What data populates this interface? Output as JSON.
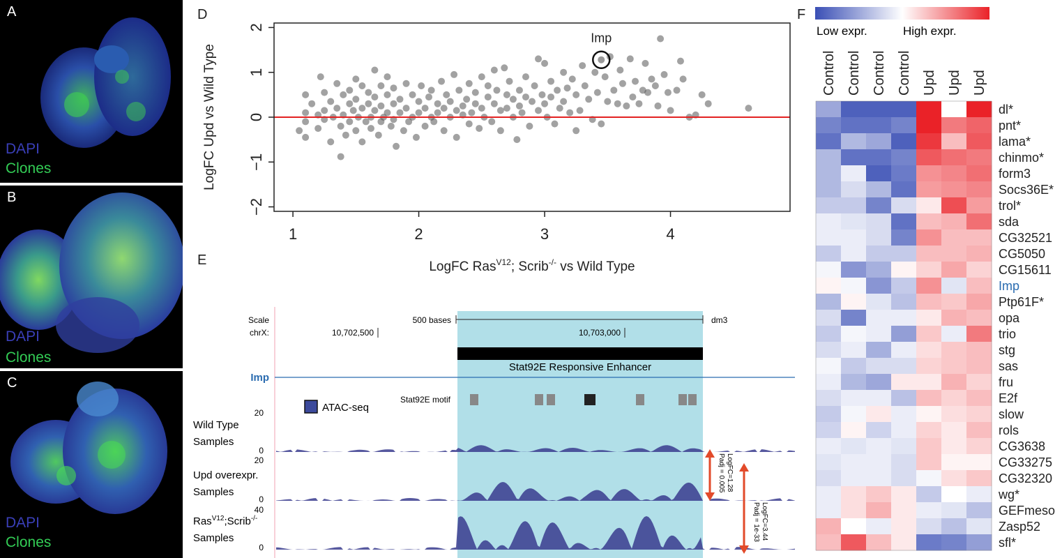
{
  "panels": {
    "A": {
      "letter": "A",
      "dapi": "DAPI",
      "clones": "Clones"
    },
    "B": {
      "letter": "B",
      "dapi": "DAPI",
      "clones": "Clones"
    },
    "C": {
      "letter": "C",
      "dapi": "DAPI",
      "clones": "Clones"
    },
    "D": {
      "letter": "D"
    },
    "E": {
      "letter": "E"
    },
    "F": {
      "letter": "F"
    }
  },
  "chart_data": {
    "type": "scatter",
    "ylabel": "LogFC Upd vs Wild Type",
    "xlabel_parts": [
      "LogFC Ras",
      "V12",
      "; Scrib",
      "-/-",
      " vs Wild Type"
    ],
    "xlim": [
      0.85,
      4.95
    ],
    "ylim": [
      -2.1,
      2.1
    ],
    "xticks": [
      1,
      2,
      3,
      4
    ],
    "yticks": [
      -2,
      -1,
      0,
      1,
      2
    ],
    "ytick_labels": [
      "−2",
      "−1",
      "0",
      "1",
      "2"
    ],
    "reference_line": {
      "y": 0,
      "color": "#e32222"
    },
    "highlight": {
      "label": "Imp",
      "x": 3.45,
      "y": 1.28
    },
    "points": [
      [
        1.05,
        -0.3
      ],
      [
        1.1,
        0.5
      ],
      [
        1.1,
        -0.1
      ],
      [
        1.1,
        0.1
      ],
      [
        1.1,
        -0.45
      ],
      [
        1.15,
        0.3
      ],
      [
        1.2,
        0.05
      ],
      [
        1.2,
        -0.25
      ],
      [
        1.22,
        0.9
      ],
      [
        1.25,
        0.55
      ],
      [
        1.25,
        0.15
      ],
      [
        1.25,
        -0.05
      ],
      [
        1.3,
        0.35
      ],
      [
        1.3,
        -0.55
      ],
      [
        1.32,
        0.0
      ],
      [
        1.35,
        0.75
      ],
      [
        1.35,
        0.2
      ],
      [
        1.38,
        -0.2
      ],
      [
        1.38,
        -0.88
      ],
      [
        1.4,
        0.5
      ],
      [
        1.4,
        0.05
      ],
      [
        1.42,
        -0.4
      ],
      [
        1.45,
        0.6
      ],
      [
        1.45,
        0.3
      ],
      [
        1.45,
        -0.1
      ],
      [
        1.48,
        0.15
      ],
      [
        1.5,
        0.85
      ],
      [
        1.5,
        0.4
      ],
      [
        1.5,
        -0.3
      ],
      [
        1.52,
        0.0
      ],
      [
        1.55,
        0.7
      ],
      [
        1.55,
        0.2
      ],
      [
        1.55,
        -0.55
      ],
      [
        1.58,
        -0.1
      ],
      [
        1.6,
        0.55
      ],
      [
        1.6,
        0.3
      ],
      [
        1.62,
        0.0
      ],
      [
        1.62,
        -0.25
      ],
      [
        1.65,
        1.05
      ],
      [
        1.65,
        0.45
      ],
      [
        1.65,
        0.15
      ],
      [
        1.68,
        -0.4
      ],
      [
        1.7,
        0.7
      ],
      [
        1.7,
        0.25
      ],
      [
        1.7,
        -0.1
      ],
      [
        1.72,
        0.0
      ],
      [
        1.75,
        0.9
      ],
      [
        1.75,
        0.5
      ],
      [
        1.75,
        0.1
      ],
      [
        1.78,
        -0.2
      ],
      [
        1.8,
        0.65
      ],
      [
        1.8,
        0.3
      ],
      [
        1.8,
        -0.05
      ],
      [
        1.82,
        -0.65
      ],
      [
        1.85,
        0.4
      ],
      [
        1.85,
        0.1
      ],
      [
        1.88,
        -0.3
      ],
      [
        1.9,
        0.75
      ],
      [
        1.9,
        0.2
      ],
      [
        1.92,
        -0.1
      ],
      [
        1.95,
        0.5
      ],
      [
        1.95,
        0.0
      ],
      [
        1.98,
        -0.45
      ],
      [
        2.0,
        0.35
      ],
      [
        2.0,
        0.1
      ],
      [
        2.02,
        0.7
      ],
      [
        2.05,
        -0.2
      ],
      [
        2.05,
        0.2
      ],
      [
        2.08,
        0.45
      ],
      [
        2.1,
        0.0
      ],
      [
        2.1,
        0.6
      ],
      [
        2.12,
        -0.1
      ],
      [
        2.15,
        0.3
      ],
      [
        2.15,
        0.1
      ],
      [
        2.18,
        0.8
      ],
      [
        2.2,
        0.2
      ],
      [
        2.2,
        -0.3
      ],
      [
        2.22,
        0.5
      ],
      [
        2.25,
        0.0
      ],
      [
        2.25,
        0.35
      ],
      [
        2.28,
        0.95
      ],
      [
        2.3,
        0.15
      ],
      [
        2.3,
        -0.45
      ],
      [
        2.32,
        0.6
      ],
      [
        2.35,
        0.25
      ],
      [
        2.35,
        0.05
      ],
      [
        2.38,
        0.4
      ],
      [
        2.4,
        0.75
      ],
      [
        2.4,
        -0.15
      ],
      [
        2.42,
        0.1
      ],
      [
        2.45,
        0.55
      ],
      [
        2.45,
        0.3
      ],
      [
        2.48,
        -0.25
      ],
      [
        2.5,
        0.9
      ],
      [
        2.5,
        0.2
      ],
      [
        2.52,
        0.0
      ],
      [
        2.55,
        0.45
      ],
      [
        2.55,
        0.7
      ],
      [
        2.58,
        -0.1
      ],
      [
        2.6,
        1.05
      ],
      [
        2.6,
        0.3
      ],
      [
        2.62,
        0.6
      ],
      [
        2.65,
        0.15
      ],
      [
        2.65,
        -0.3
      ],
      [
        2.68,
        1.1
      ],
      [
        2.7,
        0.5
      ],
      [
        2.7,
        0.2
      ],
      [
        2.72,
        0.8
      ],
      [
        2.75,
        0.0
      ],
      [
        2.75,
        0.4
      ],
      [
        2.78,
        -0.5
      ],
      [
        2.8,
        0.6
      ],
      [
        2.8,
        0.25
      ],
      [
        2.82,
        0.1
      ],
      [
        2.85,
        0.9
      ],
      [
        2.85,
        0.45
      ],
      [
        2.88,
        -0.2
      ],
      [
        2.9,
        0.35
      ],
      [
        2.92,
        0.7
      ],
      [
        2.95,
        1.3
      ],
      [
        2.95,
        0.15
      ],
      [
        2.98,
        0.5
      ],
      [
        3.0,
        1.2
      ],
      [
        3.0,
        0.3
      ],
      [
        3.02,
        0.0
      ],
      [
        3.05,
        0.8
      ],
      [
        3.05,
        0.45
      ],
      [
        3.08,
        -0.15
      ],
      [
        3.1,
        0.6
      ],
      [
        3.12,
        0.2
      ],
      [
        3.15,
        1.0
      ],
      [
        3.15,
        0.35
      ],
      [
        3.18,
        0.65
      ],
      [
        3.2,
        0.1
      ],
      [
        3.22,
        0.85
      ],
      [
        3.25,
        -0.3
      ],
      [
        3.25,
        0.5
      ],
      [
        3.28,
        0.15
      ],
      [
        3.3,
        1.15
      ],
      [
        3.32,
        0.7
      ],
      [
        3.35,
        0.4
      ],
      [
        3.38,
        -0.05
      ],
      [
        3.4,
        1.0
      ],
      [
        3.42,
        0.55
      ],
      [
        3.45,
        -0.15
      ],
      [
        3.48,
        0.9
      ],
      [
        3.5,
        0.35
      ],
      [
        3.52,
        1.35
      ],
      [
        3.55,
        0.6
      ],
      [
        3.58,
        0.3
      ],
      [
        3.6,
        1.05
      ],
      [
        3.62,
        0.75
      ],
      [
        3.65,
        0.25
      ],
      [
        3.68,
        1.3
      ],
      [
        3.7,
        0.45
      ],
      [
        3.72,
        0.8
      ],
      [
        3.75,
        0.3
      ],
      [
        3.78,
        0.6
      ],
      [
        3.8,
        1.2
      ],
      [
        3.82,
        0.55
      ],
      [
        3.85,
        0.85
      ],
      [
        3.88,
        0.7
      ],
      [
        3.9,
        0.25
      ],
      [
        3.92,
        1.75
      ],
      [
        3.95,
        0.95
      ],
      [
        3.98,
        0.55
      ],
      [
        4.0,
        0.15
      ],
      [
        4.05,
        0.6
      ],
      [
        4.08,
        1.25
      ],
      [
        4.1,
        0.85
      ],
      [
        4.15,
        0.0
      ],
      [
        4.2,
        0.05
      ],
      [
        4.25,
        0.5
      ],
      [
        4.3,
        0.3
      ],
      [
        4.62,
        0.2
      ]
    ]
  },
  "browser": {
    "scale_label": "Scale",
    "chr_label": "chrX:",
    "scale_bar_label": "500 bases",
    "assembly": "dm3",
    "pos1": "10,702,500",
    "pos2": "10,703,000",
    "gene": "Imp",
    "enhancer": "Stat92E Responsive Enhancer",
    "motif_label": "Stat92E motif",
    "legend": "ATAC-seq",
    "tracks": [
      {
        "line1": "Wild Type",
        "line2": "Samples",
        "max": "20",
        "zero": "0"
      },
      {
        "line1": "Upd overexpr.",
        "line2": "Samples",
        "max": "20",
        "zero": "0"
      },
      {
        "line1_parts": [
          "Ras",
          "V12",
          ";Scrib",
          "-/-"
        ],
        "line2": "Samples",
        "max": "40",
        "zero": "0"
      }
    ],
    "annot1": {
      "logfc": "LogFC=1.28",
      "padj": "Padj = 0.005"
    },
    "annot2": {
      "logfc": "LogFC=3.44",
      "padj": "Padj = 1e-33"
    },
    "colors": {
      "highlight": "#b1dfe8",
      "atac": "#3a3c8e",
      "arrow": "#e24a2a",
      "gene": "#2b6cb0"
    }
  },
  "heatmap": {
    "legend_low": "Low expr.",
    "legend_high": "High expr.",
    "columns": [
      "Control",
      "Control",
      "Control",
      "Control",
      "Upd",
      "Upd",
      "Upd"
    ],
    "rows": [
      {
        "gene": "dl*",
        "values": [
          -0.5,
          -0.9,
          -0.9,
          -0.9,
          1.0,
          0.0,
          1.0
        ]
      },
      {
        "gene": "pnt*",
        "values": [
          -0.7,
          -0.8,
          -0.8,
          -0.7,
          1.0,
          0.6,
          0.7
        ]
      },
      {
        "gene": "lama*",
        "values": [
          -0.8,
          -0.4,
          -0.5,
          -0.9,
          0.9,
          0.3,
          0.75
        ]
      },
      {
        "gene": "chinmo*",
        "values": [
          -0.4,
          -0.8,
          -0.8,
          -0.7,
          0.75,
          0.65,
          0.6
        ]
      },
      {
        "gene": "form3",
        "values": [
          -0.4,
          -0.1,
          -0.9,
          -0.75,
          0.5,
          0.55,
          0.65
        ]
      },
      {
        "gene": "Socs36E*",
        "values": [
          -0.4,
          -0.2,
          -0.4,
          -0.8,
          0.45,
          0.5,
          0.55
        ]
      },
      {
        "gene": "trol*",
        "values": [
          -0.3,
          -0.3,
          -0.7,
          -0.2,
          0.1,
          0.8,
          0.45
        ]
      },
      {
        "gene": "sda",
        "values": [
          -0.1,
          -0.15,
          -0.2,
          -0.8,
          0.3,
          0.35,
          0.65
        ]
      },
      {
        "gene": "CG32521",
        "values": [
          -0.1,
          -0.1,
          -0.2,
          -0.7,
          0.5,
          0.3,
          0.3
        ]
      },
      {
        "gene": "CG5050",
        "values": [
          -0.3,
          -0.1,
          -0.3,
          -0.3,
          0.3,
          0.3,
          0.35
        ]
      },
      {
        "gene": "CG15611",
        "values": [
          -0.05,
          -0.6,
          -0.45,
          0.05,
          0.2,
          0.4,
          0.2
        ]
      },
      {
        "gene": "Imp",
        "highlight": true,
        "values": [
          0.05,
          -0.05,
          -0.6,
          -0.3,
          0.5,
          -0.15,
          0.3
        ]
      },
      {
        "gene": "Ptp61F*",
        "values": [
          -0.4,
          0.05,
          -0.15,
          -0.35,
          0.3,
          0.25,
          0.4
        ]
      },
      {
        "gene": "opa",
        "values": [
          -0.2,
          -0.7,
          -0.1,
          -0.1,
          0.1,
          0.35,
          0.3
        ]
      },
      {
        "gene": "trio",
        "values": [
          -0.3,
          -0.05,
          -0.1,
          -0.55,
          0.25,
          -0.1,
          0.6
        ]
      },
      {
        "gene": "stg",
        "values": [
          -0.2,
          -0.1,
          -0.45,
          -0.1,
          0.15,
          0.25,
          0.3
        ]
      },
      {
        "gene": "sas",
        "values": [
          -0.05,
          -0.3,
          -0.2,
          -0.2,
          0.2,
          0.25,
          0.3
        ]
      },
      {
        "gene": "fru",
        "values": [
          -0.1,
          -0.4,
          -0.5,
          0.1,
          0.1,
          0.35,
          0.2
        ]
      },
      {
        "gene": "E2f",
        "values": [
          -0.2,
          -0.1,
          -0.1,
          -0.35,
          0.3,
          0.2,
          0.3
        ]
      },
      {
        "gene": "slow",
        "values": [
          -0.3,
          -0.05,
          0.1,
          -0.1,
          0.05,
          0.15,
          0.2
        ]
      },
      {
        "gene": "rols",
        "values": [
          -0.25,
          0.05,
          -0.25,
          -0.1,
          0.2,
          0.1,
          0.3
        ]
      },
      {
        "gene": "CG3638",
        "values": [
          -0.1,
          -0.15,
          -0.1,
          -0.15,
          0.25,
          0.1,
          0.2
        ]
      },
      {
        "gene": "CG33275",
        "values": [
          -0.15,
          -0.1,
          -0.1,
          -0.2,
          0.25,
          0.05,
          0.05
        ]
      },
      {
        "gene": "CG32320",
        "values": [
          -0.2,
          -0.1,
          -0.1,
          -0.2,
          -0.05,
          0.15,
          0.25
        ]
      },
      {
        "gene": "wg*",
        "values": [
          -0.1,
          0.15,
          0.25,
          0.1,
          -0.3,
          0.0,
          -0.1
        ]
      },
      {
        "gene": "GEFmeso",
        "values": [
          -0.1,
          0.15,
          0.35,
          0.1,
          -0.1,
          -0.15,
          -0.35
        ]
      },
      {
        "gene": "Zasp52",
        "values": [
          0.35,
          0.0,
          -0.1,
          0.1,
          -0.2,
          -0.35,
          -0.15
        ]
      },
      {
        "gene": "sfl*",
        "values": [
          0.3,
          0.75,
          0.3,
          0.1,
          -0.75,
          -0.7,
          -0.55
        ]
      }
    ]
  }
}
